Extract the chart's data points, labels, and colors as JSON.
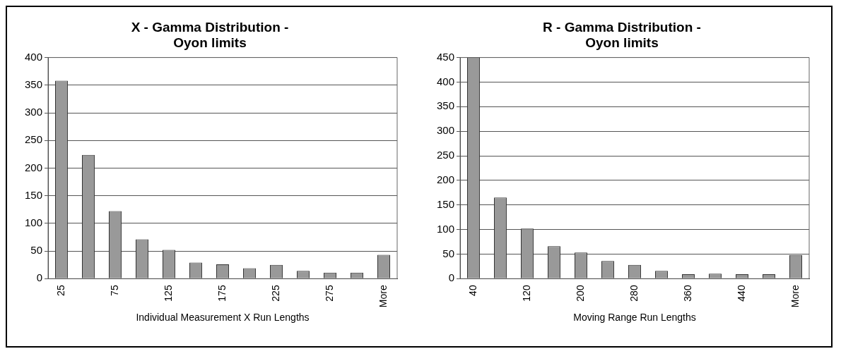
{
  "chart_data": [
    {
      "type": "bar",
      "title": "X - Gamma Distribution - Oyon limits",
      "xlabel": "Individual Measurement X Run Lengths",
      "categories": [
        "25",
        null,
        "75",
        null,
        "125",
        null,
        "175",
        null,
        "225",
        null,
        "275",
        null,
        "More"
      ],
      "values": [
        358,
        224,
        122,
        71,
        52,
        29,
        26,
        19,
        25,
        14,
        11,
        11,
        43
      ],
      "color": "#999999",
      "ylim": [
        0,
        400
      ],
      "yticks": [
        0,
        50,
        100,
        150,
        200,
        250,
        300,
        350,
        400
      ],
      "grid": "y"
    },
    {
      "type": "bar",
      "title": "R - Gamma Distribution - Oyon limits",
      "xlabel": "Moving Range Run Lengths",
      "categories": [
        "40",
        null,
        "120",
        null,
        "200",
        null,
        "280",
        null,
        "360",
        null,
        "440",
        null,
        "More"
      ],
      "values": [
        450,
        165,
        102,
        66,
        53,
        36,
        28,
        16,
        9,
        10,
        9,
        9,
        48
      ],
      "color": "#999999",
      "ylim": [
        0,
        450
      ],
      "yticks": [
        0,
        50,
        100,
        150,
        200,
        250,
        300,
        350,
        400,
        450
      ],
      "grid": "y"
    }
  ]
}
